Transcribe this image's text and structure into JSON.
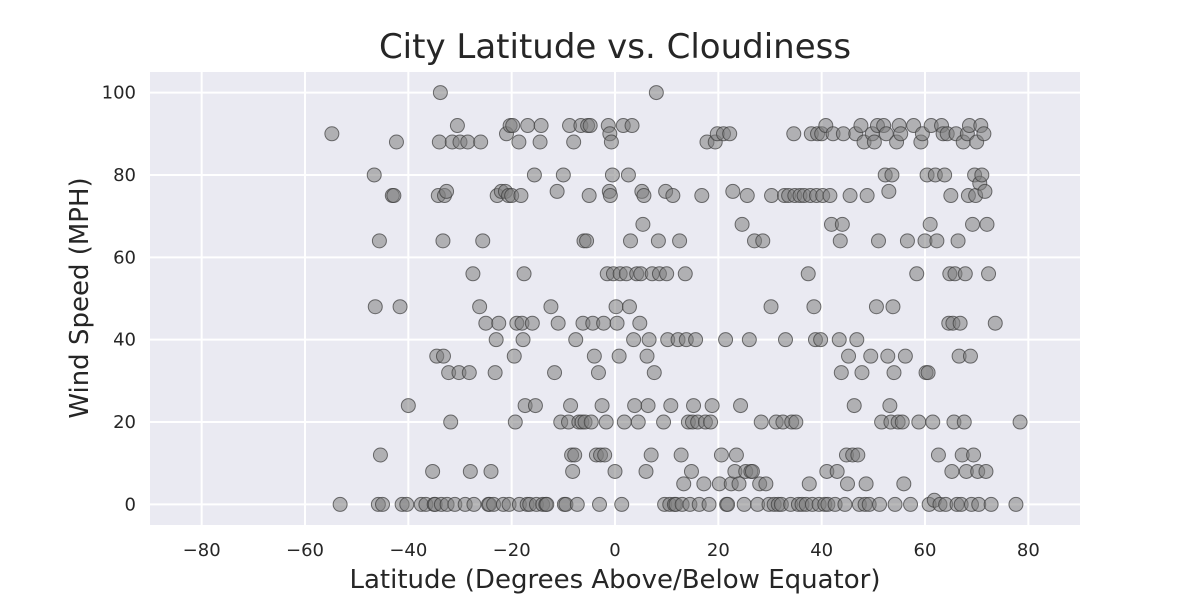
{
  "colors": {
    "background": "#ffffff",
    "plot_bg": "#eaeaf2",
    "grid": "#ffffff",
    "point_fill": "#808080",
    "point_edge": "#3a3a3a",
    "text": "#262626"
  },
  "chart_data": {
    "type": "scatter",
    "title": "City Latitude vs. Cloudiness",
    "xlabel": "Latitude (Degrees Above/Below Equator)",
    "ylabel": "Wind Speed (MPH)",
    "xlim": [
      -90,
      90
    ],
    "ylim": [
      -5,
      105
    ],
    "xticks": [
      -80,
      -60,
      -40,
      -20,
      0,
      20,
      40,
      60,
      80
    ],
    "yticks": [
      0,
      20,
      40,
      60,
      80,
      100
    ],
    "xtick_labels": [
      "−80",
      "−60",
      "−40",
      "−20",
      "0",
      "20",
      "40",
      "60",
      "80"
    ],
    "ytick_labels": [
      "0",
      "20",
      "40",
      "60",
      "80",
      "100"
    ],
    "grid": true,
    "legend": "none",
    "points": [
      [
        -54.8,
        90
      ],
      [
        -53.2,
        0
      ],
      [
        -46.6,
        80
      ],
      [
        -46.4,
        48
      ],
      [
        -45.8,
        0
      ],
      [
        -45.6,
        64
      ],
      [
        -45.4,
        12
      ],
      [
        -45.0,
        0
      ],
      [
        -43.1,
        75
      ],
      [
        -42.8,
        75
      ],
      [
        -42.3,
        88
      ],
      [
        -41.6,
        48
      ],
      [
        -41.2,
        0
      ],
      [
        -40.3,
        0
      ],
      [
        -40.0,
        24
      ],
      [
        -37.5,
        0
      ],
      [
        -36.6,
        0
      ],
      [
        -35.3,
        8
      ],
      [
        -35.0,
        0
      ],
      [
        -34.8,
        0
      ],
      [
        -34.5,
        36
      ],
      [
        -34.2,
        75
      ],
      [
        -34.0,
        88
      ],
      [
        -33.8,
        100
      ],
      [
        -33.6,
        0
      ],
      [
        -33.3,
        64
      ],
      [
        -33.2,
        36
      ],
      [
        -33.0,
        75
      ],
      [
        -32.6,
        76
      ],
      [
        -32.5,
        0
      ],
      [
        -32.2,
        32
      ],
      [
        -31.8,
        20
      ],
      [
        -31.5,
        88
      ],
      [
        -31.0,
        0
      ],
      [
        -30.5,
        92
      ],
      [
        -30.2,
        32
      ],
      [
        -30.0,
        88
      ],
      [
        -29.0,
        0
      ],
      [
        -28.5,
        88
      ],
      [
        -28.2,
        32
      ],
      [
        -28.0,
        8
      ],
      [
        -27.5,
        56
      ],
      [
        -27.3,
        0
      ],
      [
        -26.2,
        48
      ],
      [
        -26.0,
        88
      ],
      [
        -25.6,
        64
      ],
      [
        -25.0,
        44
      ],
      [
        -24.5,
        0
      ],
      [
        -24.3,
        0
      ],
      [
        -24.0,
        8
      ],
      [
        -23.5,
        0
      ],
      [
        -23.2,
        32
      ],
      [
        -23.0,
        40
      ],
      [
        -22.8,
        75
      ],
      [
        -22.5,
        44
      ],
      [
        -22.0,
        76
      ],
      [
        -21.6,
        0
      ],
      [
        -21.2,
        76
      ],
      [
        -21.0,
        90
      ],
      [
        -20.6,
        75
      ],
      [
        -20.5,
        0
      ],
      [
        -20.3,
        92
      ],
      [
        -20.0,
        75
      ],
      [
        -19.8,
        92
      ],
      [
        -19.5,
        36
      ],
      [
        -19.3,
        20
      ],
      [
        -19.0,
        44
      ],
      [
        -18.6,
        88
      ],
      [
        -18.5,
        0
      ],
      [
        -18.2,
        75
      ],
      [
        -18.0,
        44
      ],
      [
        -17.8,
        40
      ],
      [
        -17.6,
        56
      ],
      [
        -17.4,
        24
      ],
      [
        -17.0,
        0
      ],
      [
        -16.9,
        92
      ],
      [
        -16.5,
        0
      ],
      [
        -16.0,
        44
      ],
      [
        -15.6,
        80
      ],
      [
        -15.4,
        24
      ],
      [
        -15.2,
        0
      ],
      [
        -14.5,
        88
      ],
      [
        -14.3,
        92
      ],
      [
        -14.0,
        0
      ],
      [
        -13.4,
        0
      ],
      [
        -13.2,
        0
      ],
      [
        -12.4,
        48
      ],
      [
        -11.7,
        32
      ],
      [
        -11.2,
        76
      ],
      [
        -11.0,
        44
      ],
      [
        -10.5,
        20
      ],
      [
        -10.0,
        80
      ],
      [
        -9.8,
        0
      ],
      [
        -9.5,
        0
      ],
      [
        -9.0,
        20
      ],
      [
        -8.8,
        92
      ],
      [
        -8.6,
        24
      ],
      [
        -8.4,
        12
      ],
      [
        -8.2,
        8
      ],
      [
        -8.0,
        88
      ],
      [
        -7.8,
        12
      ],
      [
        -7.6,
        40
      ],
      [
        -7.3,
        0
      ],
      [
        -7.0,
        20
      ],
      [
        -6.6,
        92
      ],
      [
        -6.4,
        20
      ],
      [
        -6.2,
        44
      ],
      [
        -6.0,
        64
      ],
      [
        -5.8,
        20
      ],
      [
        -5.5,
        64
      ],
      [
        -5.3,
        92
      ],
      [
        -5.0,
        75
      ],
      [
        -4.8,
        92
      ],
      [
        -4.6,
        20
      ],
      [
        -4.3,
        44
      ],
      [
        -4.0,
        36
      ],
      [
        -3.6,
        12
      ],
      [
        -3.2,
        32
      ],
      [
        -3.0,
        0
      ],
      [
        -2.8,
        12
      ],
      [
        -2.5,
        24
      ],
      [
        -2.2,
        44
      ],
      [
        -2.0,
        12
      ],
      [
        -1.7,
        20
      ],
      [
        -1.5,
        56
      ],
      [
        -1.3,
        92
      ],
      [
        -1.1,
        76
      ],
      [
        -1.0,
        90
      ],
      [
        -0.9,
        75
      ],
      [
        -0.7,
        88
      ],
      [
        -0.5,
        80
      ],
      [
        -0.3,
        56
      ],
      [
        0.0,
        8
      ],
      [
        0.2,
        48
      ],
      [
        0.4,
        44
      ],
      [
        0.8,
        36
      ],
      [
        1.0,
        56
      ],
      [
        1.3,
        0
      ],
      [
        1.6,
        92
      ],
      [
        1.8,
        20
      ],
      [
        2.2,
        56
      ],
      [
        2.6,
        80
      ],
      [
        2.8,
        48
      ],
      [
        3.0,
        64
      ],
      [
        3.3,
        92
      ],
      [
        3.6,
        40
      ],
      [
        3.8,
        24
      ],
      [
        4.2,
        56
      ],
      [
        4.5,
        20
      ],
      [
        4.8,
        44
      ],
      [
        5.0,
        56
      ],
      [
        5.2,
        76
      ],
      [
        5.4,
        68
      ],
      [
        5.6,
        75
      ],
      [
        6.0,
        8
      ],
      [
        6.2,
        36
      ],
      [
        6.4,
        24
      ],
      [
        6.6,
        40
      ],
      [
        7.0,
        12
      ],
      [
        7.2,
        56
      ],
      [
        7.6,
        32
      ],
      [
        8.0,
        100
      ],
      [
        8.4,
        64
      ],
      [
        8.6,
        56
      ],
      [
        9.4,
        20
      ],
      [
        9.6,
        0
      ],
      [
        9.8,
        76
      ],
      [
        10.0,
        56
      ],
      [
        10.2,
        40
      ],
      [
        10.6,
        0
      ],
      [
        10.8,
        24
      ],
      [
        11.2,
        75
      ],
      [
        11.5,
        0
      ],
      [
        11.8,
        0
      ],
      [
        12.2,
        40
      ],
      [
        12.5,
        64
      ],
      [
        12.8,
        12
      ],
      [
        13.0,
        0
      ],
      [
        13.3,
        5
      ],
      [
        13.6,
        56
      ],
      [
        13.8,
        40
      ],
      [
        14.2,
        20
      ],
      [
        14.5,
        0
      ],
      [
        14.8,
        8
      ],
      [
        15.0,
        20
      ],
      [
        15.2,
        24
      ],
      [
        15.6,
        40
      ],
      [
        16.0,
        20
      ],
      [
        16.3,
        0
      ],
      [
        16.8,
        75
      ],
      [
        17.2,
        5
      ],
      [
        17.5,
        20
      ],
      [
        17.8,
        88
      ],
      [
        18.2,
        0
      ],
      [
        18.5,
        20
      ],
      [
        18.8,
        24
      ],
      [
        19.4,
        88
      ],
      [
        19.8,
        90
      ],
      [
        20.2,
        5
      ],
      [
        20.6,
        12
      ],
      [
        21.0,
        90
      ],
      [
        21.4,
        40
      ],
      [
        21.6,
        0
      ],
      [
        21.8,
        0
      ],
      [
        22.2,
        90
      ],
      [
        22.5,
        5
      ],
      [
        22.8,
        76
      ],
      [
        23.2,
        8
      ],
      [
        23.5,
        12
      ],
      [
        24.0,
        5
      ],
      [
        24.3,
        24
      ],
      [
        24.6,
        68
      ],
      [
        25.0,
        0
      ],
      [
        25.3,
        8
      ],
      [
        25.6,
        75
      ],
      [
        26.0,
        40
      ],
      [
        26.3,
        8
      ],
      [
        26.6,
        8
      ],
      [
        27.0,
        64
      ],
      [
        27.6,
        0
      ],
      [
        28.0,
        5
      ],
      [
        28.3,
        20
      ],
      [
        28.6,
        64
      ],
      [
        29.2,
        5
      ],
      [
        29.8,
        0
      ],
      [
        30.2,
        48
      ],
      [
        30.3,
        75
      ],
      [
        30.8,
        0
      ],
      [
        31.2,
        20
      ],
      [
        31.6,
        0
      ],
      [
        32.2,
        0
      ],
      [
        32.5,
        20
      ],
      [
        32.8,
        75
      ],
      [
        33.0,
        40
      ],
      [
        33.6,
        75
      ],
      [
        34.0,
        0
      ],
      [
        34.2,
        20
      ],
      [
        34.6,
        90
      ],
      [
        34.8,
        75
      ],
      [
        35.0,
        20
      ],
      [
        35.5,
        0
      ],
      [
        35.8,
        75
      ],
      [
        36.2,
        0
      ],
      [
        36.6,
        75
      ],
      [
        37.0,
        0
      ],
      [
        37.4,
        56
      ],
      [
        37.6,
        5
      ],
      [
        37.8,
        75
      ],
      [
        38.0,
        90
      ],
      [
        38.2,
        0
      ],
      [
        38.5,
        48
      ],
      [
        38.8,
        40
      ],
      [
        39.0,
        75
      ],
      [
        39.2,
        90
      ],
      [
        39.5,
        0
      ],
      [
        39.8,
        40
      ],
      [
        40.0,
        90
      ],
      [
        40.2,
        75
      ],
      [
        40.6,
        0
      ],
      [
        40.8,
        92
      ],
      [
        41.0,
        8
      ],
      [
        41.2,
        0
      ],
      [
        41.6,
        75
      ],
      [
        41.9,
        68
      ],
      [
        42.2,
        90
      ],
      [
        42.6,
        0
      ],
      [
        43.0,
        8
      ],
      [
        43.4,
        40
      ],
      [
        43.6,
        64
      ],
      [
        43.8,
        32
      ],
      [
        44.0,
        68
      ],
      [
        44.2,
        90
      ],
      [
        44.5,
        0
      ],
      [
        44.8,
        12
      ],
      [
        45.0,
        5
      ],
      [
        45.2,
        36
      ],
      [
        45.5,
        75
      ],
      [
        46.0,
        12
      ],
      [
        46.3,
        24
      ],
      [
        46.6,
        90
      ],
      [
        46.8,
        40
      ],
      [
        47.0,
        12
      ],
      [
        47.3,
        0
      ],
      [
        47.6,
        92
      ],
      [
        47.8,
        32
      ],
      [
        48.2,
        88
      ],
      [
        48.4,
        0
      ],
      [
        48.6,
        5
      ],
      [
        48.8,
        75
      ],
      [
        49.2,
        0
      ],
      [
        49.5,
        36
      ],
      [
        49.8,
        90
      ],
      [
        50.2,
        88
      ],
      [
        50.6,
        48
      ],
      [
        50.8,
        92
      ],
      [
        51.0,
        64
      ],
      [
        51.2,
        0
      ],
      [
        51.6,
        20
      ],
      [
        52.0,
        92
      ],
      [
        52.3,
        80
      ],
      [
        52.5,
        90
      ],
      [
        52.8,
        36
      ],
      [
        53.0,
        76
      ],
      [
        53.2,
        24
      ],
      [
        53.4,
        20
      ],
      [
        53.6,
        80
      ],
      [
        53.8,
        48
      ],
      [
        54.0,
        32
      ],
      [
        54.2,
        0
      ],
      [
        54.5,
        88
      ],
      [
        54.8,
        20
      ],
      [
        55.0,
        92
      ],
      [
        55.3,
        90
      ],
      [
        55.6,
        20
      ],
      [
        55.9,
        5
      ],
      [
        56.2,
        36
      ],
      [
        56.6,
        64
      ],
      [
        57.2,
        0
      ],
      [
        57.8,
        92
      ],
      [
        58.4,
        56
      ],
      [
        58.8,
        20
      ],
      [
        59.2,
        88
      ],
      [
        59.5,
        90
      ],
      [
        60.0,
        64
      ],
      [
        60.2,
        32
      ],
      [
        60.4,
        80
      ],
      [
        60.6,
        32
      ],
      [
        60.8,
        0
      ],
      [
        61.0,
        68
      ],
      [
        61.2,
        92
      ],
      [
        61.5,
        20
      ],
      [
        61.8,
        1
      ],
      [
        62.0,
        80
      ],
      [
        62.3,
        64
      ],
      [
        62.6,
        12
      ],
      [
        62.9,
        0
      ],
      [
        63.2,
        92
      ],
      [
        63.5,
        90
      ],
      [
        63.8,
        80
      ],
      [
        64.0,
        0
      ],
      [
        64.3,
        90
      ],
      [
        64.6,
        44
      ],
      [
        64.8,
        56
      ],
      [
        65.0,
        75
      ],
      [
        65.2,
        8
      ],
      [
        65.4,
        44
      ],
      [
        65.6,
        20
      ],
      [
        65.8,
        56
      ],
      [
        66.0,
        90
      ],
      [
        66.2,
        0
      ],
      [
        66.4,
        64
      ],
      [
        66.6,
        36
      ],
      [
        66.8,
        44
      ],
      [
        67.0,
        0
      ],
      [
        67.2,
        12
      ],
      [
        67.4,
        88
      ],
      [
        67.6,
        20
      ],
      [
        67.8,
        56
      ],
      [
        68.0,
        8
      ],
      [
        68.2,
        90
      ],
      [
        68.4,
        75
      ],
      [
        68.6,
        92
      ],
      [
        68.8,
        36
      ],
      [
        69.0,
        0
      ],
      [
        69.2,
        68
      ],
      [
        69.4,
        12
      ],
      [
        69.6,
        80
      ],
      [
        69.8,
        75
      ],
      [
        70.0,
        88
      ],
      [
        70.2,
        8
      ],
      [
        70.4,
        0
      ],
      [
        70.6,
        78
      ],
      [
        70.8,
        92
      ],
      [
        71.0,
        80
      ],
      [
        71.4,
        90
      ],
      [
        71.6,
        76
      ],
      [
        71.8,
        8
      ],
      [
        72.0,
        68
      ],
      [
        72.3,
        56
      ],
      [
        72.8,
        0
      ],
      [
        73.6,
        44
      ],
      [
        77.6,
        0
      ],
      [
        78.4,
        20
      ]
    ]
  }
}
